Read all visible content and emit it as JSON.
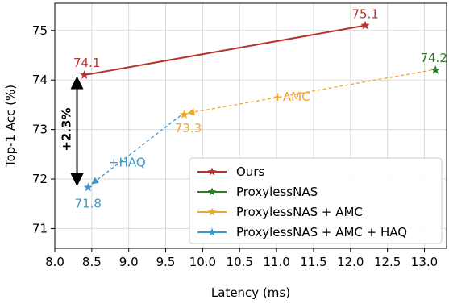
{
  "chart_data": {
    "type": "scatter",
    "xlabel": "Latency (ms)",
    "ylabel": "Top-1 Acc (%)",
    "xlim": [
      8.0,
      13.3
    ],
    "ylim": [
      70.6,
      75.55
    ],
    "xticks": [
      8.0,
      8.5,
      9.0,
      9.5,
      10.0,
      10.5,
      11.0,
      11.5,
      12.0,
      12.5,
      13.0
    ],
    "xtick_labels": [
      "8.0",
      "8.5",
      "9.0",
      "9.5",
      "10.0",
      "10.5",
      "11.0",
      "11.5",
      "12.0",
      "12.5",
      "13.0"
    ],
    "yticks": [
      71,
      72,
      73,
      74,
      75
    ],
    "ytick_labels": [
      "71",
      "72",
      "73",
      "74",
      "75"
    ],
    "grid": true,
    "legend_position": "lower-right",
    "series": [
      {
        "name": "Ours",
        "color": "#b5332b",
        "line": "solid",
        "points": [
          {
            "x": 8.4,
            "y": 74.1,
            "label": "74.1"
          },
          {
            "x": 12.2,
            "y": 75.1,
            "label": "75.1"
          }
        ]
      },
      {
        "name": "ProxylessNAS",
        "color": "#2e7a2a",
        "line": "none",
        "points": [
          {
            "x": 13.15,
            "y": 74.2,
            "label": "74.2"
          }
        ]
      },
      {
        "name": "ProxylessNAS + AMC",
        "color": "#f0a732",
        "line": "none",
        "points": [
          {
            "x": 9.75,
            "y": 73.3,
            "label": "73.3"
          }
        ]
      },
      {
        "name": "ProxylessNAS + AMC + HAQ",
        "color": "#3d98c8",
        "line": "none",
        "points": [
          {
            "x": 8.45,
            "y": 71.83,
            "label": "71.8"
          }
        ]
      }
    ],
    "annotations": [
      {
        "text": "+AMC",
        "color": "#f0a732",
        "from": [
          13.1,
          74.2
        ],
        "to": [
          9.8,
          73.33
        ],
        "style": "dashed-arrow"
      },
      {
        "text": "+HAQ",
        "color": "#3d98c8",
        "from": [
          9.7,
          73.28
        ],
        "to": [
          8.5,
          71.9
        ],
        "style": "dashed-arrow"
      },
      {
        "text": "+2.3%",
        "color": "#000000",
        "from": [
          8.3,
          71.83
        ],
        "to": [
          8.3,
          74.1
        ],
        "style": "double-arrow"
      }
    ]
  }
}
